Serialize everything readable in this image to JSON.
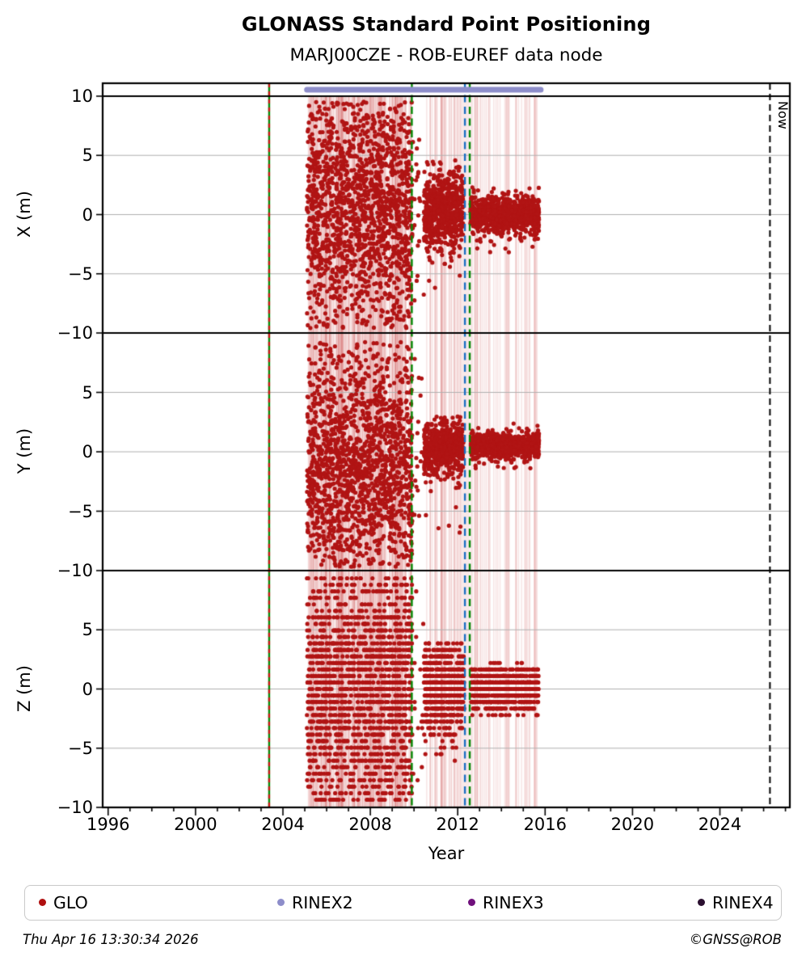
{
  "title": "GLONASS Standard Point Positioning",
  "subtitle": "MARJ00CZE - ROB-EUREF data node",
  "footer": {
    "timestamp": "Thu Apr 16 13:30:34 2026",
    "credit": "©GNSS@ROB"
  },
  "legend": [
    {
      "label": "GLO",
      "color": "#b01010"
    },
    {
      "label": "RINEX2",
      "color": "#8d8dca"
    },
    {
      "label": "RINEX3",
      "color": "#70107c"
    },
    {
      "label": "RINEX4",
      "color": "#2b1030"
    }
  ],
  "chart_data": {
    "type": "scatter",
    "xlabel": "Year",
    "x_range": [
      1995.75,
      2027.2
    ],
    "x_major_ticks": [
      1996,
      2000,
      2004,
      2008,
      2012,
      2016,
      2020,
      2024
    ],
    "x_minor_tick_step": 1,
    "panel_y_range": [
      -10,
      10
    ],
    "grid": true,
    "point_color": "#b11414",
    "point_radius": 2.6,
    "panels": [
      {
        "label": "X (m)",
        "yticks": [
          [
            10,
            "10"
          ],
          [
            5,
            "5"
          ],
          [
            0,
            "0"
          ],
          [
            -5,
            "−5"
          ],
          [
            -10,
            "−10"
          ]
        ],
        "clusters": [
          {
            "x0": 2005.1,
            "x1": 2009.92,
            "n": 1600,
            "center": 0.5,
            "sigma": 4.2,
            "uniform_frac": 0.35,
            "clip": [
              -9.7,
              9.6
            ]
          },
          {
            "x0": 2009.92,
            "x1": 2010.45,
            "n": 20,
            "center": 0,
            "sigma": 3.0,
            "uniform_frac": 0.3,
            "clip": [
              -9,
              9
            ]
          },
          {
            "x0": 2010.45,
            "x1": 2012.25,
            "n": 650,
            "center": 0.3,
            "sigma": 1.5,
            "uniform_frac": 0.05,
            "clip": [
              -6.5,
              4.6
            ]
          },
          {
            "x0": 2012.58,
            "x1": 2015.72,
            "n": 850,
            "center": 0.0,
            "sigma": 0.85,
            "uniform_frac": 0.03,
            "clip": [
              -3.2,
              2.3
            ]
          }
        ]
      },
      {
        "label": "Y (m)",
        "yticks": [
          [
            5,
            "5"
          ],
          [
            0,
            "0"
          ],
          [
            -5,
            "−5"
          ],
          [
            -10,
            "−10"
          ]
        ],
        "clusters": [
          {
            "x0": 2005.1,
            "x1": 2009.92,
            "n": 1600,
            "center": -1.8,
            "sigma": 4.4,
            "uniform_frac": 0.3,
            "clip": [
              -9.7,
              9.3
            ]
          },
          {
            "x0": 2009.92,
            "x1": 2010.45,
            "n": 15,
            "center": 0,
            "sigma": 3.0,
            "uniform_frac": 0.3,
            "clip": [
              -9,
              9
            ]
          },
          {
            "x0": 2010.45,
            "x1": 2012.25,
            "n": 650,
            "center": 0.3,
            "sigma": 1.1,
            "uniform_frac": 0.04,
            "clip": [
              -7,
              3
            ]
          },
          {
            "x0": 2012.6,
            "x1": 2015.72,
            "n": 850,
            "center": 0.5,
            "sigma": 0.55,
            "uniform_frac": 0.02,
            "clip": [
              -1.6,
              2.4
            ]
          }
        ]
      },
      {
        "label": "Z (m)",
        "quantize": 0.55,
        "yticks": [
          [
            5,
            "5"
          ],
          [
            0,
            "0"
          ],
          [
            -5,
            "−5"
          ],
          [
            -10,
            "−10"
          ]
        ],
        "clusters": [
          {
            "x0": 2005.1,
            "x1": 2009.92,
            "n": 1600,
            "center": 0,
            "sigma": 5.4,
            "uniform_frac": 0.35,
            "clip": [
              -9.6,
              9.6
            ]
          },
          {
            "x0": 2009.92,
            "x1": 2010.45,
            "n": 15,
            "center": 0,
            "sigma": 3.0,
            "uniform_frac": 0.3,
            "clip": [
              -9,
              9
            ]
          },
          {
            "x0": 2010.45,
            "x1": 2012.3,
            "n": 650,
            "center": 0,
            "sigma": 1.9,
            "uniform_frac": 0.06,
            "clip": [
              -6.5,
              4.2
            ]
          },
          {
            "x0": 2012.6,
            "x1": 2015.7,
            "n": 850,
            "center": 0,
            "sigma": 0.95,
            "uniform_frac": 0.03,
            "clip": [
              -2.6,
              2.2
            ]
          }
        ]
      }
    ],
    "events": [
      {
        "year": 2003.37,
        "style": "solid",
        "color": "#068806",
        "overlay_dash_color": "#cc1111"
      },
      {
        "year": 2009.9,
        "style": "dashed",
        "color": "#068806"
      },
      {
        "year": 2012.33,
        "style": "dashed",
        "color": "#1b6ec2"
      },
      {
        "year": 2012.55,
        "style": "dashed",
        "color": "#068806"
      }
    ],
    "now_marker": {
      "year": 2026.29,
      "label": "Now",
      "color": "#000000",
      "style": "dashed"
    },
    "rinex2_bar": {
      "start": 2005.1,
      "end": 2015.8,
      "color": "#8d8dca"
    },
    "gap_band": {
      "start": 2011.8,
      "end": 2012.55,
      "color": "#cd5050",
      "alpha": 0.13
    },
    "gap_lines": {
      "color": "#cd5050",
      "alpha": 0.14,
      "regions": [
        {
          "start": 2005.15,
          "end": 2009.9,
          "count": 220
        },
        {
          "start": 2010.5,
          "end": 2012.2,
          "count": 30
        },
        {
          "start": 2012.6,
          "end": 2015.7,
          "count": 45
        }
      ]
    },
    "grid_color": "#b0b0b0",
    "seed": 42
  }
}
